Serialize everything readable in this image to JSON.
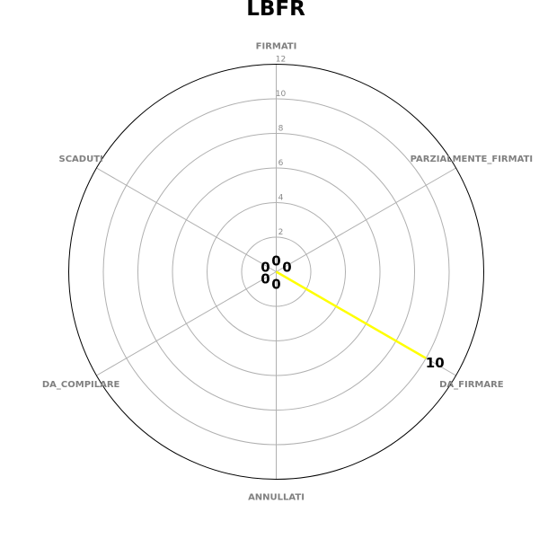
{
  "chart_data": {
    "type": "radar",
    "title": "LBFR",
    "categories": [
      "FIRMATI",
      "PARZIALMENTE_FIRMATI",
      "DA_FIRMARE",
      "ANNULLATI",
      "DA_COMPILARE",
      "SCADUTI"
    ],
    "series": [
      {
        "values": [
          0,
          0,
          10,
          0,
          0,
          0
        ],
        "color": "#ffff00"
      }
    ],
    "r_ticks": [
      2,
      4,
      6,
      8,
      10,
      12
    ],
    "rlim": [
      0,
      12
    ],
    "grid": true,
    "data_labels": [
      "0",
      "0",
      "10",
      "0",
      "0",
      "0"
    ]
  }
}
